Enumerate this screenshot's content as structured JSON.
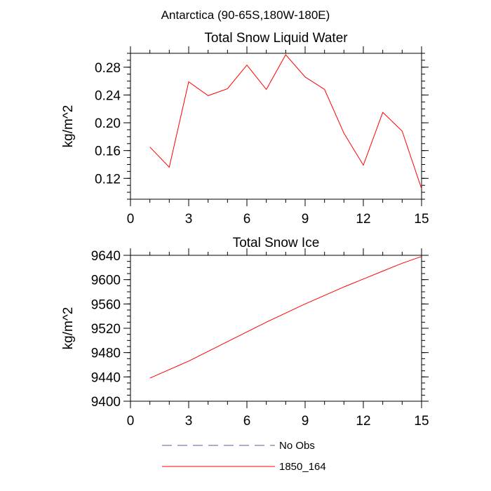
{
  "figure_title": "Antarctica (90-65S,180W-180E)",
  "legend": {
    "entries": [
      {
        "label": "No Obs",
        "color": "#5a5a9a",
        "style": "dashed"
      },
      {
        "label": "1850_164",
        "color": "#ff0000",
        "style": "solid"
      }
    ]
  },
  "chart_data": [
    {
      "type": "line",
      "title": "Total Snow Liquid Water",
      "xlabel": "",
      "ylabel": "kg/m^2",
      "xlim": [
        0,
        15
      ],
      "ylim": [
        0.09,
        0.3
      ],
      "xticks": [
        0,
        3,
        6,
        9,
        12,
        15
      ],
      "yticks": [
        0.12,
        0.16,
        0.2,
        0.24,
        0.28
      ],
      "ytick_labels": [
        "0.12",
        "0.16",
        "0.20",
        "0.24",
        "0.28"
      ],
      "xminor_step": 1,
      "yminor_step": 0.01,
      "grid": false,
      "series": [
        {
          "name": "1850_164",
          "color": "#ff0000",
          "x": [
            1,
            2,
            3,
            4,
            5,
            6,
            7,
            8,
            9,
            10,
            11,
            12,
            13,
            14,
            15
          ],
          "y": [
            0.165,
            0.136,
            0.259,
            0.239,
            0.249,
            0.283,
            0.248,
            0.298,
            0.266,
            0.248,
            0.185,
            0.139,
            0.215,
            0.188,
            0.105
          ]
        }
      ]
    },
    {
      "type": "line",
      "title": "Total Snow Ice",
      "xlabel": "",
      "ylabel": "kg/m^2",
      "xlim": [
        0,
        15
      ],
      "ylim": [
        9400,
        9640
      ],
      "xticks": [
        0,
        3,
        6,
        9,
        12,
        15
      ],
      "yticks": [
        9400,
        9440,
        9480,
        9520,
        9560,
        9600,
        9640
      ],
      "ytick_labels": [
        "9400",
        "9440",
        "9480",
        "9520",
        "9560",
        "9600",
        "9640"
      ],
      "xminor_step": 1,
      "yminor_step": 10,
      "grid": false,
      "series": [
        {
          "name": "1850_164",
          "color": "#ff0000",
          "x": [
            1,
            2,
            3,
            4,
            5,
            6,
            7,
            8,
            9,
            10,
            11,
            12,
            13,
            14,
            15
          ],
          "y": [
            9438,
            9452,
            9466,
            9482,
            9498,
            9514,
            9530,
            9545,
            9560,
            9574,
            9588,
            9601,
            9614,
            9627,
            9638
          ]
        }
      ]
    }
  ]
}
